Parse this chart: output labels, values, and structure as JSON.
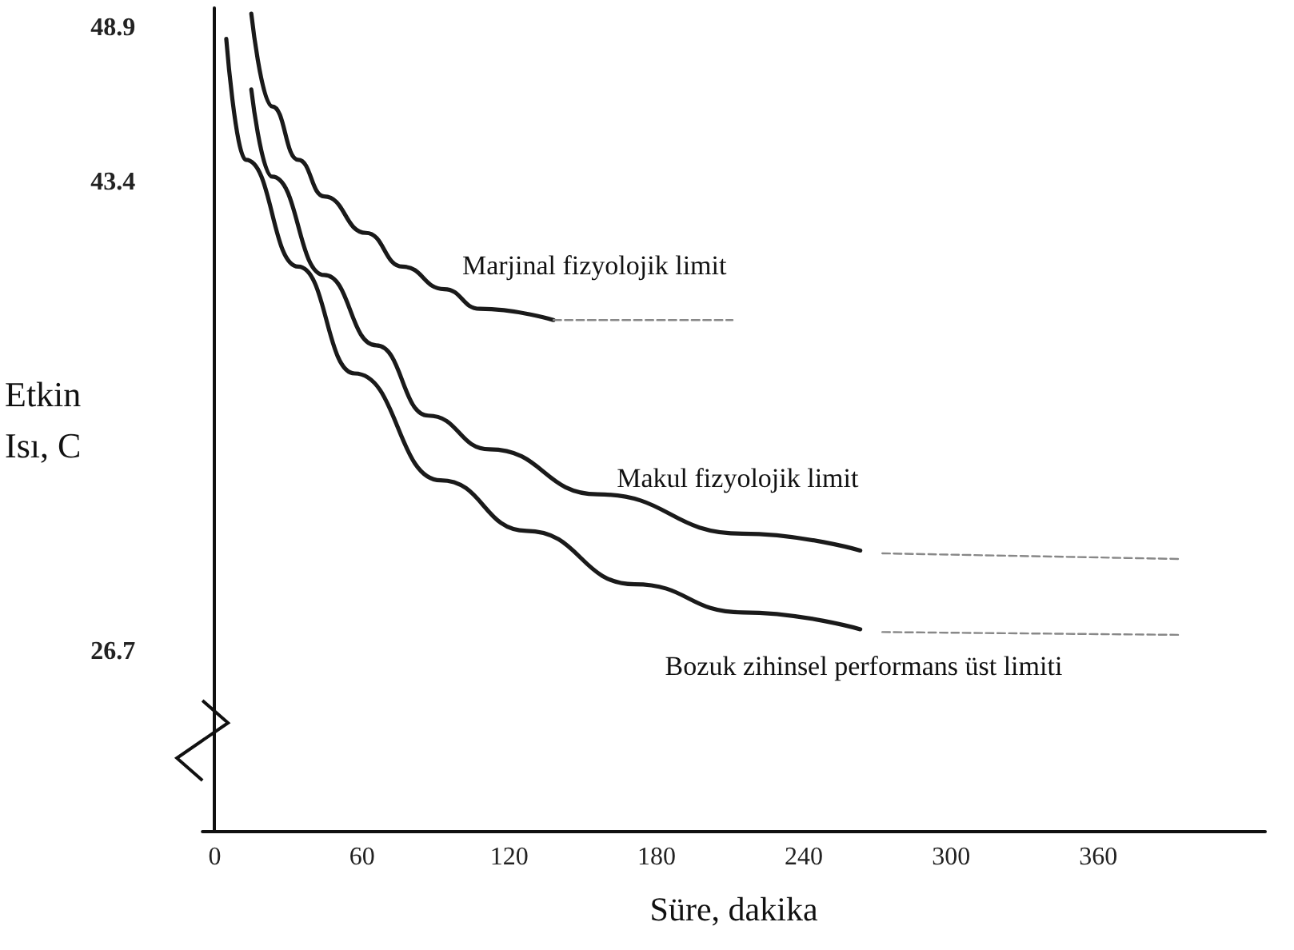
{
  "chart_data": {
    "type": "line",
    "xlabel": "Süre, dakika",
    "ylabel": "Etkin\nIsı, C",
    "xlim": [
      -5,
      428
    ],
    "xticks": [
      0,
      60,
      120,
      180,
      240,
      300,
      360
    ],
    "ylim": [
      20.3,
      49.6
    ],
    "yticks": [
      26.7,
      43.4,
      48.9
    ],
    "grid": false,
    "marker": "none",
    "series": [
      {
        "name": "Marjinal fizyolojik limit",
        "color": "#1a1a1a",
        "line_style": "solid",
        "x": [
          14.9,
          23.4,
          34,
          44.6,
          61.6,
          76.5,
          93.5,
          108,
          138
        ],
        "values": [
          49.4,
          46.1,
          44.2,
          42.9,
          41.6,
          40.4,
          39.6,
          38.9,
          38.5
        ]
      },
      {
        "color": "#888888",
        "line_style": "dashed",
        "x": [
          138,
          211
        ],
        "values": [
          38.5,
          38.5
        ]
      },
      {
        "name": "Makul fizyolojik limit",
        "color": "#1a1a1a",
        "line_style": "solid",
        "x": [
          14.9,
          23.4,
          44.6,
          65.8,
          87,
          112,
          156,
          215,
          263
        ],
        "values": [
          46.7,
          43.6,
          40.1,
          37.6,
          35.1,
          33.9,
          32.3,
          30.9,
          30.3
        ]
      },
      {
        "color": "#888888",
        "line_style": "dashed",
        "x": [
          272,
          393
        ],
        "values": [
          30.2,
          30.0
        ]
      },
      {
        "name": "Bozuk zihinsel performans üst limiti",
        "color": "#1a1a1a",
        "line_style": "solid",
        "x": [
          4.7,
          12.7,
          34,
          57,
          92,
          127,
          171,
          215,
          263
        ],
        "values": [
          48.5,
          44.2,
          40.4,
          36.6,
          32.8,
          31.0,
          29.1,
          28.1,
          27.5
        ]
      },
      {
        "color": "#888888",
        "line_style": "dashed",
        "x": [
          272,
          393
        ],
        "values": [
          27.4,
          27.3
        ]
      }
    ]
  }
}
